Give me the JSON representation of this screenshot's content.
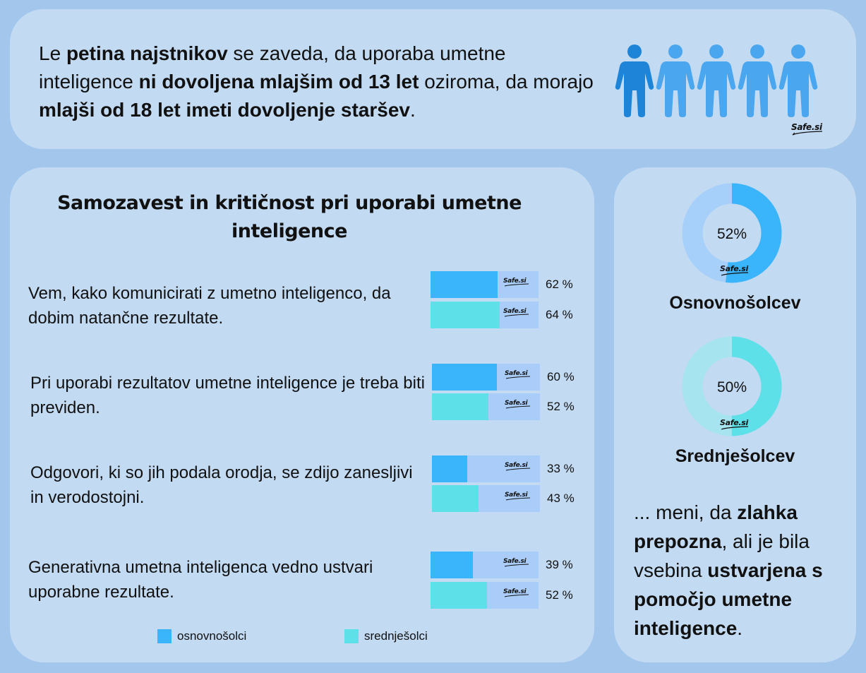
{
  "headline": {
    "parts": [
      {
        "t": "Le ",
        "b": false
      },
      {
        "t": "petina najstnikov",
        "b": true
      },
      {
        "t": " se zaveda, da uporaba umetne inteligence ",
        "b": false
      },
      {
        "t": "ni dovoljena mlajšim od 13 let",
        "b": true
      },
      {
        "t": " oziroma, da morajo ",
        "b": false
      },
      {
        "t": "mlajši od 18 let imeti dovoljenje staršev",
        "b": true
      },
      {
        "t": ".",
        "b": false
      }
    ]
  },
  "people_icon": {
    "name": "person-icon",
    "count": 5,
    "highlighted": 1,
    "highlight_color": "#1e84d8",
    "color": "#4aa6ee"
  },
  "brand": {
    "logo_text": "Safe.si"
  },
  "chart_data": {
    "type": "bar",
    "title": "Samozavest in kritičnost pri uporabi umetne inteligence",
    "categories": [
      "Vem, kako komunicirati z umetno inteligenco, da dobim natančne rezultate.",
      "Pri uporabi rezultatov umetne inteligence je treba biti previden.",
      "Odgovori, ki so jih podala orodja, se zdijo zanesljivi in verodostojni.",
      "Generativna umetna inteligenca vedno ustvari uporabne rezultate."
    ],
    "series": [
      {
        "name": "osnovnošolci",
        "color": "#3ab4fb",
        "values": [
          62,
          60,
          33,
          39
        ],
        "labels": [
          "62 %",
          "60 %",
          "33 %",
          "39 %"
        ]
      },
      {
        "name": "srednješolci",
        "color": "#5ee0e8",
        "values": [
          64,
          52,
          43,
          52
        ],
        "labels": [
          "64 %",
          "52 %",
          "43 %",
          "52 %"
        ]
      }
    ],
    "xlim": [
      0,
      100
    ],
    "track_color": "#a9cdf8",
    "legend": "bottom"
  },
  "donuts": [
    {
      "value": 52,
      "label": "52%",
      "caption": "Osnovnošolcev",
      "color": "#3ab4fb",
      "track": "#a6d0fa"
    },
    {
      "value": 50,
      "label": "50%",
      "caption": "Srednješolcev",
      "color": "#5ee0e8",
      "track": "#a6e5f0"
    }
  ],
  "note": {
    "parts": [
      {
        "t": "... meni, da ",
        "b": false
      },
      {
        "t": "zlahka prepozna",
        "b": true
      },
      {
        "t": ", ali je bila vsebina ",
        "b": false
      },
      {
        "t": "ustvarjena s pomočjo umetne inteligence",
        "b": true
      },
      {
        "t": ".",
        "b": false
      }
    ]
  }
}
